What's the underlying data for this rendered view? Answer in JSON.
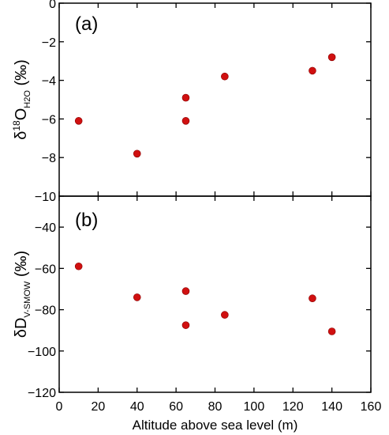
{
  "chart_data": [
    {
      "panel_label": "(a)",
      "type": "scatter",
      "ylabel_main": "δ",
      "ylabel_sup": "18",
      "ylabel_mid": "O",
      "ylabel_sub": "H2O",
      "ylabel_unit": " (‰)",
      "ylim": [
        -10,
        0
      ],
      "yticks": [
        0,
        -2,
        -4,
        -6,
        -8,
        -10
      ],
      "yticklabels": [
        "0",
        "−2",
        "−4",
        "−6",
        "−8",
        "−10"
      ],
      "x": [
        10,
        40,
        65,
        65,
        85,
        130,
        140
      ],
      "y": [
        -6.1,
        -7.8,
        -4.9,
        -6.1,
        -3.8,
        -3.5,
        -2.8
      ],
      "marker_color": "#d01010"
    },
    {
      "panel_label": "(b)",
      "type": "scatter",
      "ylabel_main": "δD",
      "ylabel_sub": "V-SMOW",
      "ylabel_unit": " (‰)",
      "ylim": [
        -120,
        -25
      ],
      "yticks": [
        -40,
        -60,
        -80,
        -100,
        -120
      ],
      "yticklabels": [
        "−40",
        "−60",
        "−80",
        "−100",
        "−120"
      ],
      "x": [
        10,
        40,
        65,
        65,
        85,
        130,
        140
      ],
      "y": [
        -59,
        -74,
        -71,
        -87.5,
        -82.5,
        -74.5,
        -90.5
      ],
      "marker_color": "#d01010"
    }
  ],
  "x_axis": {
    "label": "Altitude above sea level (m)",
    "xlim": [
      0,
      160
    ],
    "ticks": [
      0,
      20,
      40,
      60,
      80,
      100,
      120,
      140,
      160
    ],
    "ticklabels": [
      "0",
      "20",
      "40",
      "60",
      "80",
      "100",
      "120",
      "140",
      "160"
    ]
  }
}
